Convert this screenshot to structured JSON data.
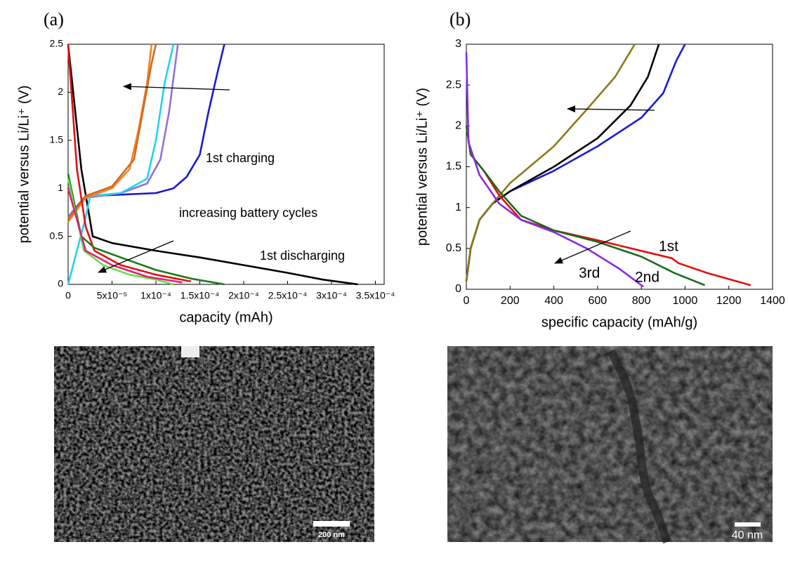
{
  "chart_data": [
    {
      "type": "line",
      "panel_label": "(a)",
      "xlabel": "capacity (mAh)",
      "ylabel": "potential versus Li/Li⁺ (V)",
      "xlim": [
        0,
        0.00036
      ],
      "ylim": [
        0,
        2.5
      ],
      "xticks": [
        0,
        {
          "value": 5e-05,
          "label": "5x10⁻⁵"
        },
        {
          "value": 0.0001,
          "label": "1x10⁻⁴"
        },
        {
          "value": 0.00015,
          "label": "1.5x10⁻⁴"
        },
        {
          "value": 0.0002,
          "label": "2x10⁻⁴"
        },
        {
          "value": 0.00025,
          "label": "2.5x10⁻⁴"
        },
        {
          "value": 0.0003,
          "label": "3x10⁻⁴"
        },
        {
          "value": 0.00035,
          "label": "3.5x10⁻⁴"
        }
      ],
      "yticks": [
        0,
        0.5,
        1,
        1.5,
        2,
        2.5
      ],
      "annotations": [
        "1st charging",
        "increasing battery cycles",
        "1st discharging"
      ],
      "series": [
        {
          "color": "#000000",
          "x": [
            0,
            1.5e-05,
            2.8e-05,
            5e-05,
            0.0001,
            0.00015,
            0.0002,
            0.00025,
            0.00029,
            0.00033
          ],
          "values": [
            2.5,
            1.2,
            0.5,
            0.43,
            0.35,
            0.28,
            0.2,
            0.12,
            0.05,
            0
          ]
        },
        {
          "color": "#1a1acc",
          "x": [
            0,
            2e-05,
            5e-05,
            0.0001,
            0.00012,
            0.000135,
            0.00015,
            0.00016,
            0.00017,
            0.000178
          ],
          "values": [
            0.7,
            0.92,
            0.93,
            0.95,
            1.0,
            1.12,
            1.35,
            1.8,
            2.2,
            2.5
          ]
        },
        {
          "color": "#9370db",
          "x": [
            0,
            2e-05,
            6e-05,
            9e-05,
            0.000105,
            0.000115,
            0.000125
          ],
          "values": [
            0.7,
            0.9,
            0.95,
            1.05,
            1.3,
            1.8,
            2.5
          ]
        },
        {
          "color": "#22d3ee",
          "x": [
            0,
            2e-05,
            2.5e-05,
            6e-05,
            9e-05,
            0.0001,
            0.00011,
            0.00012
          ],
          "values": [
            0,
            0.7,
            0.92,
            0.95,
            1.1,
            1.5,
            2.1,
            2.5
          ]
        },
        {
          "color": "#f0862a",
          "x": [
            0,
            2e-05,
            5e-05,
            7e-05,
            8e-05,
            9e-05,
            9.5e-05
          ],
          "values": [
            0.65,
            0.9,
            1.0,
            1.2,
            1.6,
            2.1,
            2.5
          ]
        },
        {
          "color": "#d2691e",
          "x": [
            0,
            2e-05,
            5e-05,
            7.5e-05,
            8.5e-05,
            9.5e-05,
            0.0001
          ],
          "values": [
            0.68,
            0.92,
            1.02,
            1.3,
            1.8,
            2.3,
            2.5
          ]
        },
        {
          "color": "#e01010",
          "x": [
            0,
            1e-05,
            2e-05,
            3e-05,
            6e-05,
            0.0001,
            0.00014
          ],
          "values": [
            2.5,
            1.2,
            0.6,
            0.35,
            0.2,
            0.1,
            0.03
          ]
        },
        {
          "color": "#1a7a1a",
          "x": [
            0,
            1.5e-05,
            3e-05,
            6e-05,
            0.0001,
            0.00014,
            0.000178
          ],
          "values": [
            1.15,
            0.5,
            0.38,
            0.28,
            0.15,
            0.06,
            0
          ]
        },
        {
          "color": "#66e04a",
          "x": [
            0,
            1.8e-05,
            4e-05,
            7e-05,
            0.0001,
            0.00012
          ],
          "values": [
            1.1,
            0.35,
            0.2,
            0.1,
            0.05,
            0
          ]
        },
        {
          "color": "#e0207a",
          "x": [
            0,
            2e-05,
            5e-05,
            9e-05,
            0.00013
          ],
          "values": [
            1.0,
            0.35,
            0.2,
            0.08,
            0.02
          ]
        }
      ]
    },
    {
      "type": "line",
      "panel_label": "(b)",
      "xlabel": "specific capacity (mAh/g)",
      "ylabel": "potential versus Li/Li⁺ (V)",
      "xlim": [
        0,
        1400
      ],
      "ylim": [
        0,
        3
      ],
      "xticks": [
        0,
        200,
        400,
        600,
        800,
        1000,
        1200,
        1400
      ],
      "yticks": [
        0,
        0.5,
        1,
        1.5,
        2,
        2.5,
        3
      ],
      "annotations": [
        "1st",
        "2nd",
        "3rd"
      ],
      "series": [
        {
          "color": "#1a1adc",
          "x": [
            0,
            20,
            60,
            120,
            200,
            400,
            600,
            800,
            900,
            960,
            1000
          ],
          "values": [
            0.1,
            0.5,
            0.85,
            1.05,
            1.2,
            1.45,
            1.75,
            2.1,
            2.4,
            2.8,
            3
          ]
        },
        {
          "color": "#000000",
          "x": [
            0,
            20,
            60,
            120,
            200,
            400,
            600,
            750,
            830,
            880
          ],
          "values": [
            0.1,
            0.5,
            0.85,
            1.05,
            1.2,
            1.5,
            1.85,
            2.25,
            2.6,
            3
          ]
        },
        {
          "color": "#8b7a1a",
          "x": [
            0,
            20,
            60,
            120,
            200,
            400,
            550,
            680,
            770
          ],
          "values": [
            0.1,
            0.5,
            0.85,
            1.05,
            1.3,
            1.75,
            2.2,
            2.6,
            3
          ]
        },
        {
          "color": "#e01010",
          "x": [
            0,
            20,
            80,
            150,
            250,
            400,
            600,
            800,
            940,
            970,
            1100,
            1300
          ],
          "values": [
            2.0,
            1.65,
            1.45,
            1.15,
            0.85,
            0.72,
            0.6,
            0.47,
            0.38,
            0.32,
            0.2,
            0.05
          ]
        },
        {
          "color": "#1a6a1a",
          "x": [
            0,
            20,
            80,
            150,
            250,
            400,
            600,
            800,
            950,
            1090
          ],
          "values": [
            2.0,
            1.65,
            1.45,
            1.2,
            0.9,
            0.72,
            0.58,
            0.4,
            0.2,
            0.05
          ]
        },
        {
          "color": "#8a2be2",
          "x": [
            0,
            10,
            60,
            150,
            250,
            400,
            550,
            700,
            810
          ],
          "values": [
            2.9,
            1.8,
            1.4,
            1.05,
            0.85,
            0.7,
            0.5,
            0.25,
            0.03
          ]
        }
      ]
    }
  ],
  "images": [
    {
      "scale_bar": "200 nm"
    },
    {
      "scale_bar": "40 nm"
    }
  ]
}
